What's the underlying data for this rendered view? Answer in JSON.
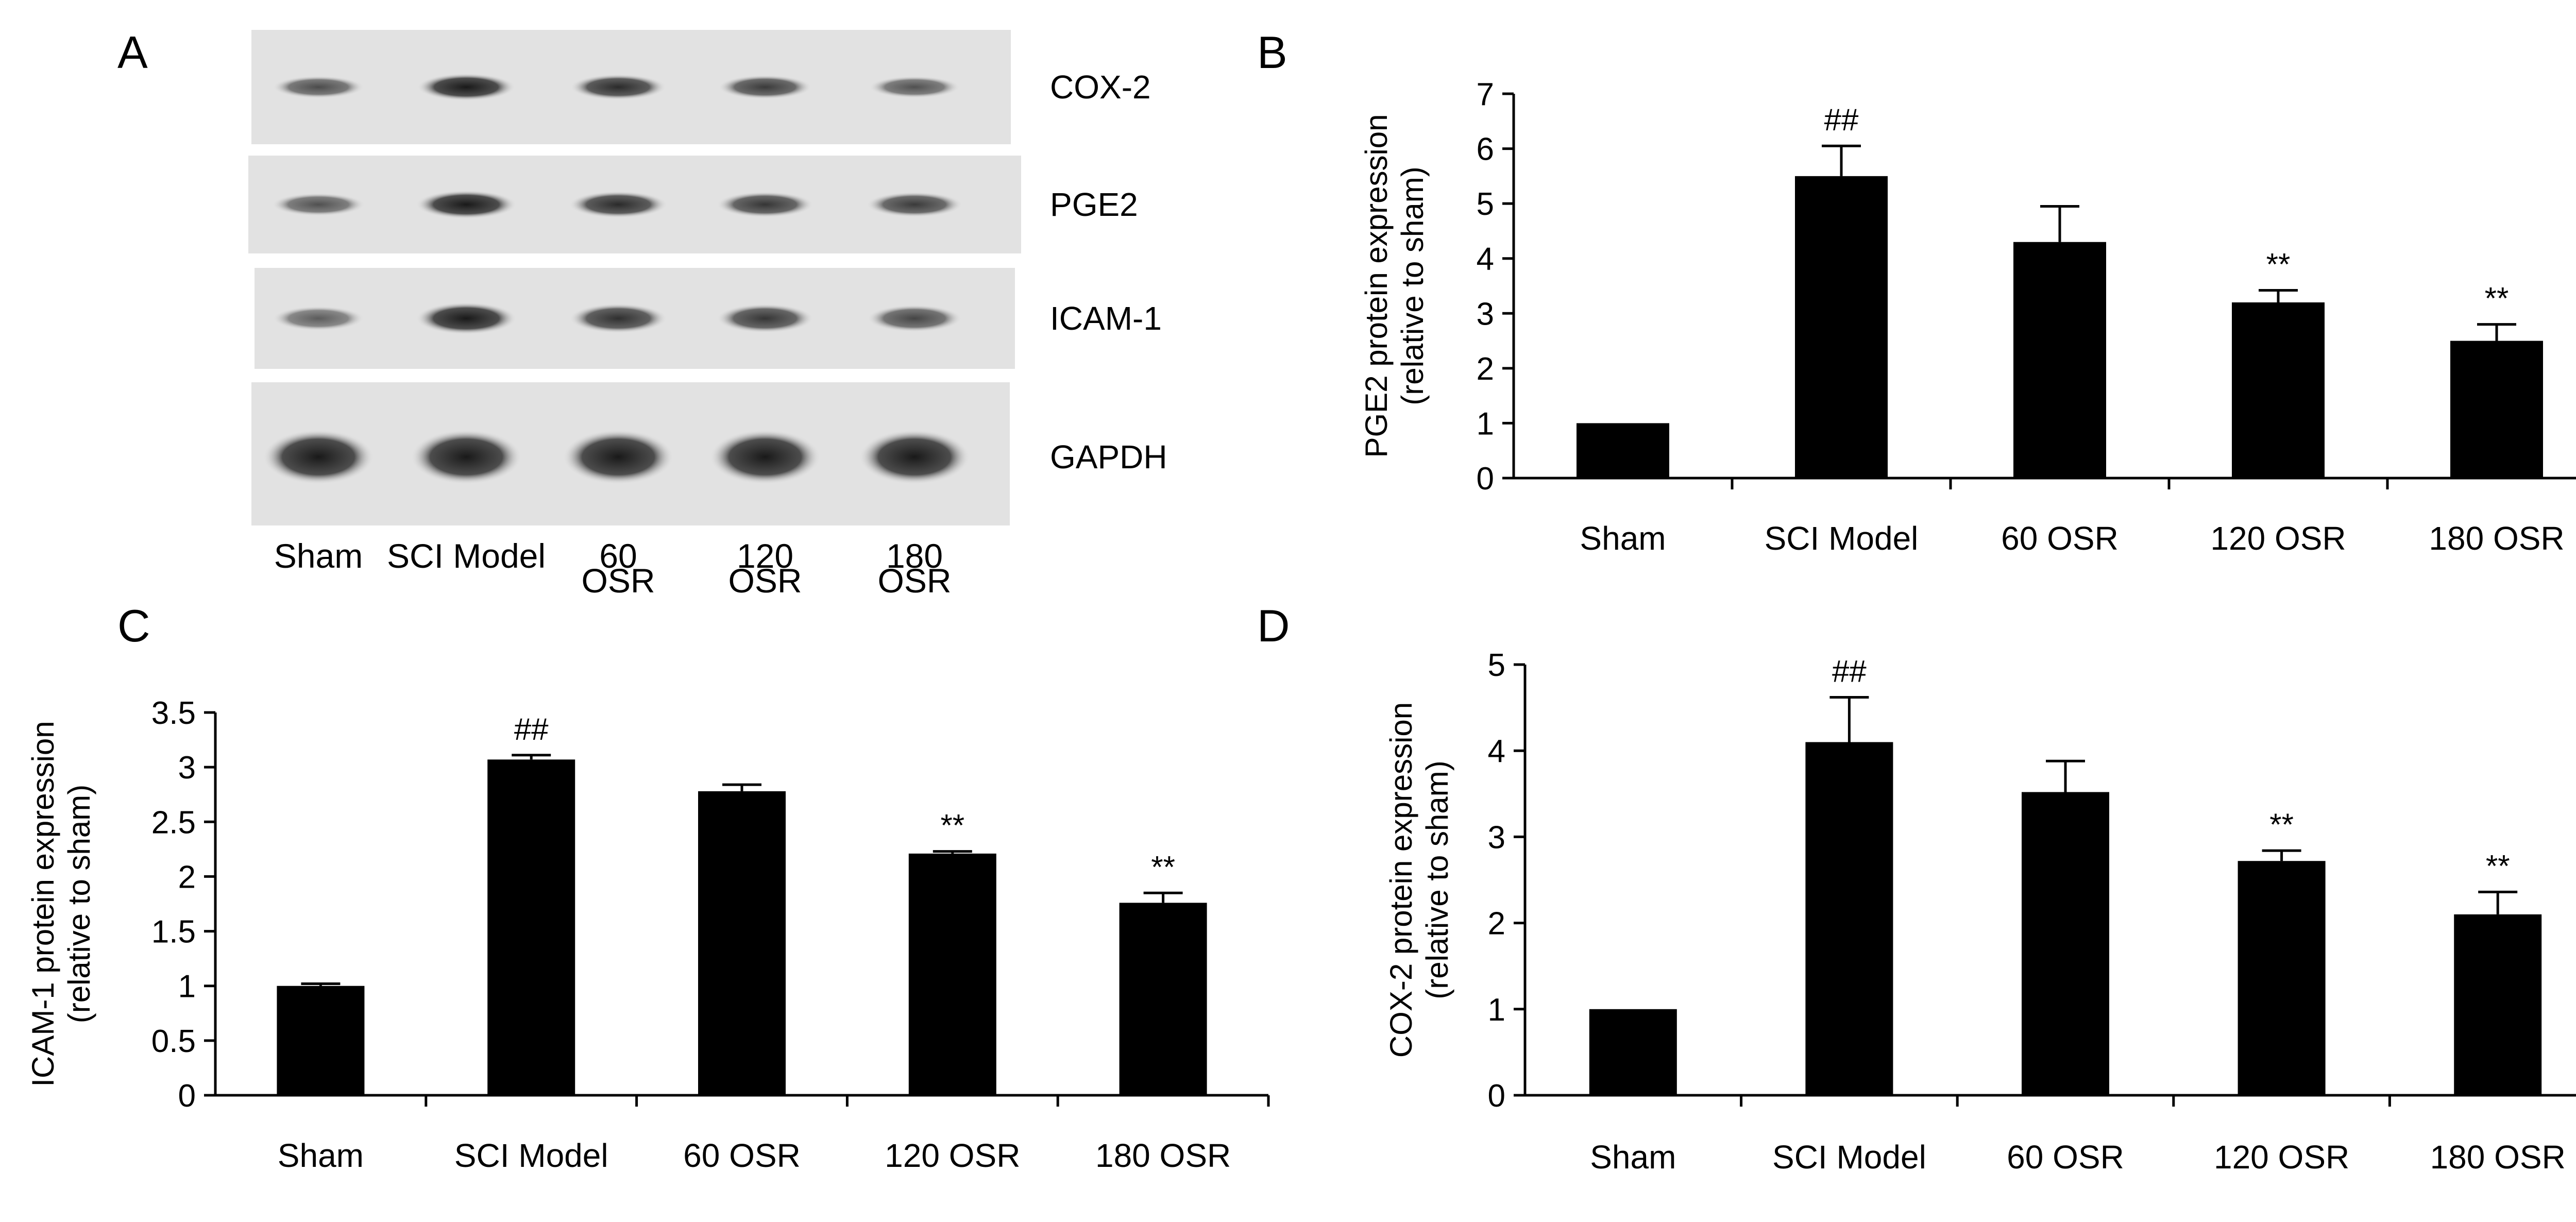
{
  "panels": {
    "A": "A",
    "B": "B",
    "C": "C",
    "D": "D"
  },
  "blot": {
    "rows": [
      {
        "name": "COX-2",
        "intensity": [
          0.55,
          1.0,
          0.85,
          0.7,
          0.5
        ]
      },
      {
        "name": "PGE2",
        "intensity": [
          0.5,
          1.0,
          0.85,
          0.75,
          0.7
        ]
      },
      {
        "name": "ICAM-1",
        "intensity": [
          0.4,
          1.0,
          0.8,
          0.75,
          0.6
        ]
      },
      {
        "name": "GAPDH",
        "intensity": [
          1.0,
          1.0,
          1.0,
          1.0,
          1.0
        ]
      }
    ],
    "lanes": [
      {
        "line1": "Sham",
        "line2": ""
      },
      {
        "line1": "SCI Model",
        "line2": ""
      },
      {
        "line1": "60",
        "line2": "OSR"
      },
      {
        "line1": "120",
        "line2": "OSR"
      },
      {
        "line1": "180",
        "line2": "OSR"
      }
    ]
  },
  "chart_data": [
    {
      "panel": "B",
      "type": "bar",
      "categories": [
        "Sham",
        "SCI Model",
        "60 OSR",
        "120 OSR",
        "180 OSR"
      ],
      "values": [
        1.0,
        5.5,
        4.3,
        3.2,
        2.5
      ],
      "errors": [
        0.0,
        0.55,
        0.65,
        0.22,
        0.3
      ],
      "significance": [
        "",
        "##",
        "",
        "**",
        "**"
      ],
      "ylabel_line1": "PGE2 protein expression",
      "ylabel_line2": "(relative to sham)",
      "xlabel": "",
      "ylim": [
        0,
        7
      ],
      "yticks": [
        0,
        1,
        2,
        3,
        4,
        5,
        6,
        7
      ],
      "ytick_labels": [
        "0",
        "1",
        "2",
        "3",
        "4",
        "5",
        "6",
        "7"
      ],
      "bar_color": "#000000",
      "grid": false
    },
    {
      "panel": "C",
      "type": "bar",
      "categories": [
        "Sham",
        "SCI Model",
        "60 OSR",
        "120 OSR",
        "180 OSR"
      ],
      "values": [
        1.0,
        3.07,
        2.78,
        2.21,
        1.76
      ],
      "errors": [
        0.02,
        0.04,
        0.06,
        0.02,
        0.09
      ],
      "significance": [
        "",
        "##",
        "",
        "**",
        "**"
      ],
      "ylabel_line1": "ICAM-1 protein expression",
      "ylabel_line2": "(relative to sham)",
      "xlabel": "",
      "ylim": [
        0,
        3.5
      ],
      "yticks": [
        0,
        0.5,
        1,
        1.5,
        2,
        2.5,
        3,
        3.5
      ],
      "ytick_labels": [
        "0",
        "0.5",
        "1",
        "1.5",
        "2",
        "2.5",
        "3",
        "3.5"
      ],
      "bar_color": "#000000",
      "grid": false
    },
    {
      "panel": "D",
      "type": "bar",
      "categories": [
        "Sham",
        "SCI Model",
        "60 OSR",
        "120 OSR",
        "180 OSR"
      ],
      "values": [
        1.0,
        4.1,
        3.52,
        2.72,
        2.1
      ],
      "errors": [
        0.0,
        0.52,
        0.36,
        0.12,
        0.26
      ],
      "significance": [
        "",
        "##",
        "",
        "**",
        "**"
      ],
      "ylabel_line1": "COX-2 protein expression",
      "ylabel_line2": "(relative to sham)",
      "xlabel": "",
      "ylim": [
        0,
        5
      ],
      "yticks": [
        0,
        1,
        2,
        3,
        4,
        5
      ],
      "ytick_labels": [
        "0",
        "1",
        "2",
        "3",
        "4",
        "5"
      ],
      "bar_color": "#000000",
      "grid": false
    }
  ]
}
